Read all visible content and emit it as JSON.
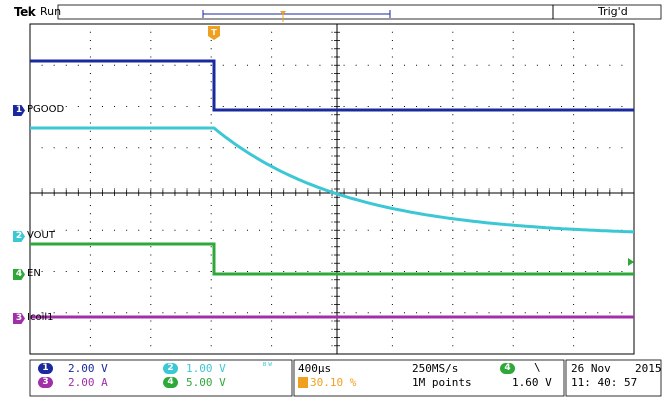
{
  "header": {
    "brand": "Tek",
    "run_state": "Run",
    "trigger_status": "Trig'd",
    "trigger_marker": "T"
  },
  "channels": [
    {
      "number": "1",
      "name": "PGOOD",
      "color": "#1a2a9e",
      "scale": "2.00 V"
    },
    {
      "number": "2",
      "name": "VOUT",
      "color": "#3cc7d4",
      "scale": "1.00 V"
    },
    {
      "number": "3",
      "name": "Icoil1",
      "color": "#a12fa8",
      "scale": "2.00 A"
    },
    {
      "number": "4",
      "name": "EN",
      "color": "#2fa83a",
      "scale": "5.00 V"
    }
  ],
  "readouts": {
    "bw_symbol": "ᴮᵂ",
    "timebase": "400µs",
    "trigger_position": "30.10 %",
    "sample_rate": "250MS/s",
    "record_length": "1M points",
    "trigger_channel": "4",
    "trigger_slope": "\\",
    "trigger_level": "1.60 V",
    "date": "26 Nov",
    "year": "2015",
    "time": "11: 40: 57"
  },
  "colors": {
    "grid": "#000000",
    "trigger_orange": "#f0a020",
    "ch1": "#1a2a9e",
    "ch2": "#3cc7d4",
    "ch3": "#a12fa8",
    "ch4": "#2fa83a"
  }
}
